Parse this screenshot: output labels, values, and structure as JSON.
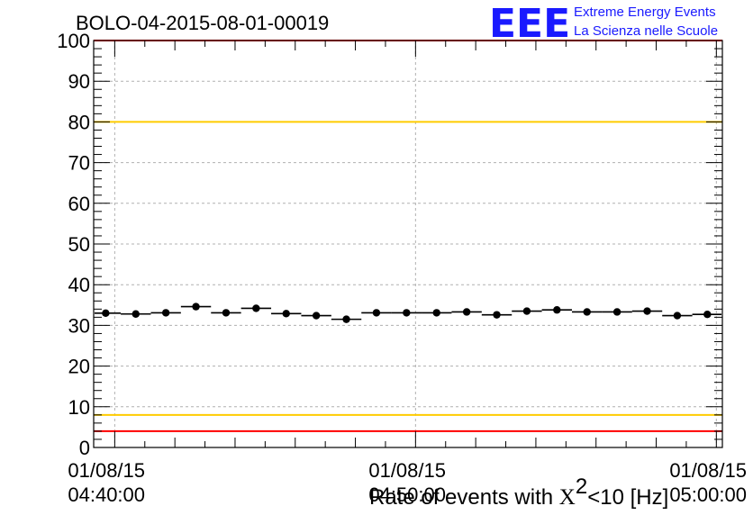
{
  "title": "BOLO-04-2015-08-01-00019",
  "logo": {
    "mark": "EEE",
    "line1": "Extreme Energy Events",
    "line2": "La Scienza nelle Scuole"
  },
  "colors": {
    "logo": "#1a1aff",
    "red_line": "#ff0000",
    "yellow_line": "#ffcc00",
    "grid": "#b0b0b0",
    "data": "#000000"
  },
  "chart_data": {
    "type": "scatter",
    "title": "BOLO-04-2015-08-01-00019",
    "xlabel": {
      "prefix": "Rate of events with ",
      "chi": "X",
      "exponent": "2",
      "suffix": "<10 [Hz]"
    },
    "ylabel": "",
    "ylim": [
      0,
      100
    ],
    "y_ticks": [
      0,
      10,
      20,
      30,
      40,
      50,
      60,
      70,
      80,
      90,
      100
    ],
    "x_range_minutes": [
      -0.7,
      20.2
    ],
    "x_ticks": [
      {
        "minute": 0,
        "date": "01/08/15",
        "time": "04:40:00"
      },
      {
        "minute": 10,
        "date": "01/08/15",
        "time": "04:50:00"
      },
      {
        "minute": 20,
        "date": "01/08/15",
        "time": "05:00:00"
      }
    ],
    "grid": true,
    "series": [
      {
        "x_minutes": [
          -0.3,
          0.7,
          1.7,
          2.7,
          3.7,
          4.7,
          5.7,
          6.7,
          7.7,
          8.7,
          9.7,
          10.7,
          11.7,
          12.7,
          13.7,
          14.7,
          15.7,
          16.7,
          17.7,
          18.7,
          19.7
        ],
        "values": [
          33.0,
          32.8,
          33.1,
          34.6,
          33.1,
          34.2,
          32.9,
          32.4,
          31.5,
          33.1,
          33.1,
          33.1,
          33.3,
          32.6,
          33.5,
          33.8,
          33.3,
          33.3,
          33.5,
          32.4,
          32.7
        ],
        "bin_halfwidth_minutes": 0.5
      }
    ],
    "reference_lines": [
      {
        "y": 100,
        "color": "red"
      },
      {
        "y": 80,
        "color": "yellow"
      },
      {
        "y": 8,
        "color": "yellow"
      },
      {
        "y": 4,
        "color": "red"
      }
    ]
  }
}
